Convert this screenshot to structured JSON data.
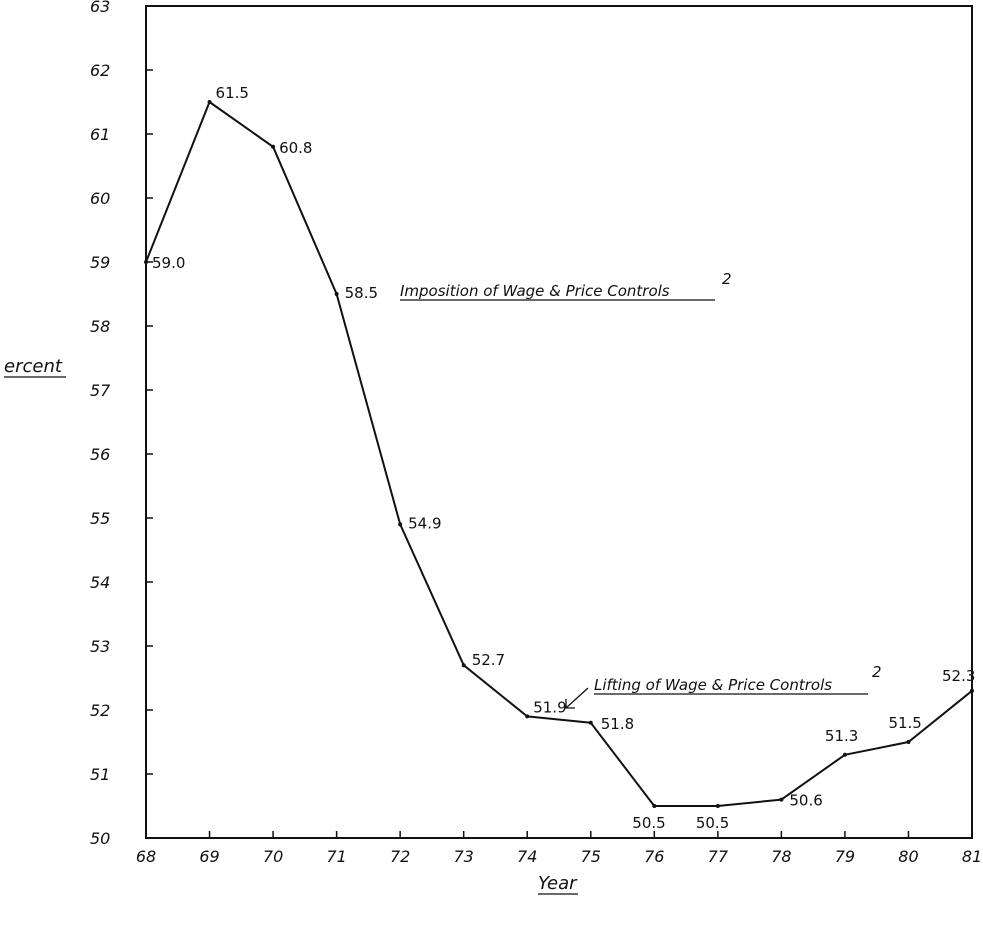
{
  "chart_data": {
    "type": "line",
    "x": [
      "68",
      "69",
      "70",
      "71",
      "72",
      "73",
      "74",
      "75",
      "76",
      "77",
      "78",
      "79",
      "80",
      "81"
    ],
    "series": [
      {
        "values": [
          59.0,
          61.5,
          60.8,
          58.5,
          54.9,
          52.7,
          51.9,
          51.8,
          50.5,
          50.5,
          50.6,
          51.3,
          51.5,
          52.3
        ],
        "labels": [
          "59.0",
          "61.5",
          "60.8",
          "58.5",
          "54.9",
          "52.7",
          "51.9",
          "51.8",
          "50.5",
          "50.5",
          "50.6",
          "51.3",
          "51.5",
          "52.3"
        ]
      }
    ],
    "ylim": [
      50,
      63
    ],
    "yticks": [
      "50",
      "51",
      "52",
      "53",
      "54",
      "55",
      "56",
      "57",
      "58",
      "59",
      "60",
      "61",
      "62",
      "63"
    ],
    "xlabel": "Year",
    "ylabel": "ercent",
    "annotations": [
      {
        "text": "Imposition of Wage & Price Controls",
        "superscript": "2",
        "at_x": "71"
      },
      {
        "text": "Lifting of Wage & Price Controls",
        "superscript": "2",
        "at_x": "74"
      }
    ],
    "grid": false,
    "legend": "none"
  }
}
